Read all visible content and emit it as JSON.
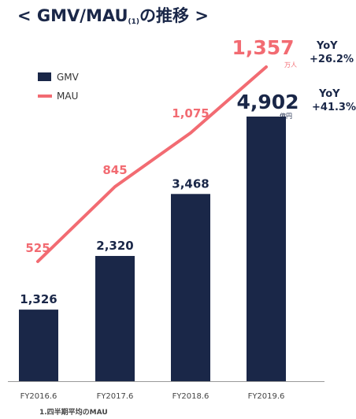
{
  "title": {
    "open_bracket": "<",
    "main": "GMV/MAU",
    "sup": "(1)",
    "suffix": "の推移",
    "close_bracket": ">"
  },
  "footnote": "1.四半期平均のMAU",
  "colors": {
    "bar": "#1a2748",
    "line": "#f26b72",
    "yoy_text": "#1a2748",
    "axis": "#999999",
    "title": "#1a2748"
  },
  "chart_data": {
    "type": "bar+line",
    "categories": [
      "FY2016.6",
      "FY2017.6",
      "FY2018.6",
      "FY2019.6"
    ],
    "series": [
      {
        "name": "GMV",
        "type": "bar",
        "values": [
          1326,
          2320,
          3468,
          4902
        ],
        "labels": [
          "1,326",
          "2,320",
          "3,468",
          "4,902"
        ],
        "unit": "億円",
        "yoy": "YoY +41.3%"
      },
      {
        "name": "MAU",
        "type": "line",
        "values": [
          525,
          845,
          1075,
          1357
        ],
        "labels": [
          "525",
          "845",
          "1,075",
          "1,357"
        ],
        "unit": "万人",
        "yoy": "YoY +26.2%"
      }
    ],
    "legend": {
      "position": "top-left"
    },
    "gridlines": false
  }
}
